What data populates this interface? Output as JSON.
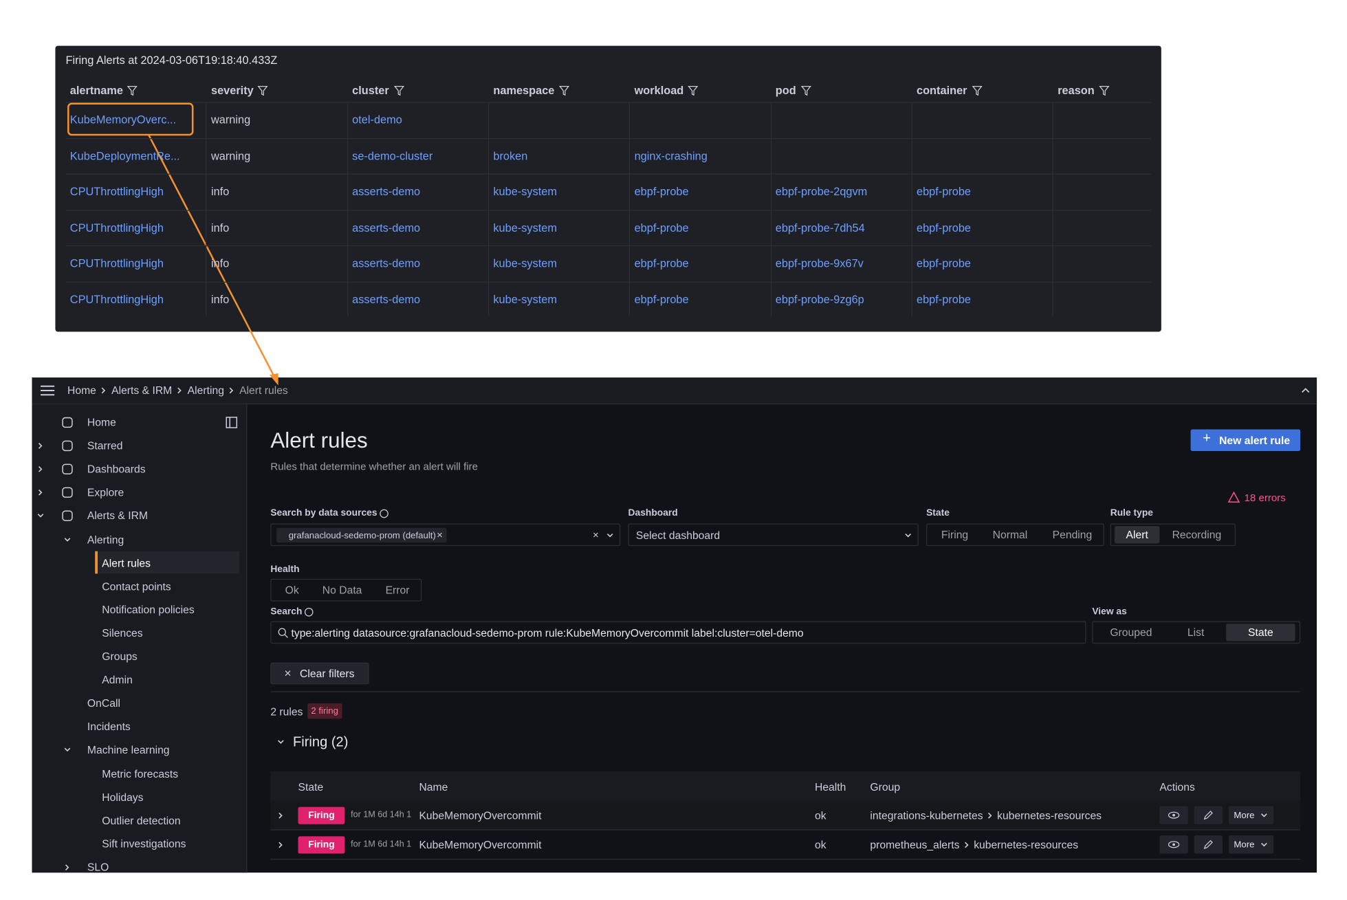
{
  "firing_panel": {
    "title": "Firing Alerts at 2024-03-06T19:18:40.433Z",
    "columns": [
      "alertname",
      "severity",
      "cluster",
      "namespace",
      "workload",
      "pod",
      "container",
      "reason"
    ],
    "rows": [
      [
        "KubeMemoryOverc...",
        "warning",
        "otel-demo",
        null,
        null,
        null,
        null,
        null
      ],
      [
        "KubeDeploymentRe...",
        "warning",
        "se-demo-cluster",
        "broken",
        "nginx-crashing",
        null,
        null,
        null
      ],
      [
        "CPUThrottlingHigh",
        "info",
        "asserts-demo",
        "kube-system",
        "ebpf-probe",
        "ebpf-probe-2qgvm",
        "ebpf-probe",
        null
      ],
      [
        "CPUThrottlingHigh",
        "info",
        "asserts-demo",
        "kube-system",
        "ebpf-probe",
        "ebpf-probe-7dh54",
        "ebpf-probe",
        null
      ],
      [
        "CPUThrottlingHigh",
        "info",
        "asserts-demo",
        "kube-system",
        "ebpf-probe",
        "ebpf-probe-9x67v",
        "ebpf-probe",
        null
      ],
      [
        "CPUThrottlingHigh",
        "info",
        "asserts-demo",
        "kube-system",
        "ebpf-probe",
        "ebpf-probe-9zg6p",
        "ebpf-probe",
        null
      ]
    ]
  },
  "breadcrumb": [
    "Home",
    "Alerts & IRM",
    "Alerting",
    "Alert rules"
  ],
  "nav": {
    "items": [
      {
        "label": "Home"
      },
      {
        "label": "Starred"
      },
      {
        "label": "Dashboards"
      },
      {
        "label": "Explore"
      },
      {
        "label": "Alerts & IRM",
        "children": [
          {
            "label": "Alerting",
            "children": [
              {
                "label": "Alert rules"
              },
              {
                "label": "Contact points"
              },
              {
                "label": "Notification policies"
              },
              {
                "label": "Silences"
              },
              {
                "label": "Groups"
              },
              {
                "label": "Admin"
              }
            ]
          },
          {
            "label": "OnCall"
          },
          {
            "label": "Incidents"
          },
          {
            "label": "Machine learning",
            "children": [
              {
                "label": "Metric forecasts"
              },
              {
                "label": "Holidays"
              },
              {
                "label": "Outlier detection"
              },
              {
                "label": "Sift investigations"
              }
            ]
          },
          {
            "label": "SLO"
          }
        ]
      }
    ]
  },
  "page": {
    "title": "Alert rules",
    "subtitle": "Rules that determine whether an alert will fire",
    "new_rule_button": "New alert rule",
    "errors": "18 errors",
    "filters": {
      "datasource_label": "Search by data sources",
      "datasource_chip": "grafanacloud-sedemo-prom (default)",
      "dashboard_label": "Dashboard",
      "dashboard_placeholder": "Select dashboard",
      "state_label": "State",
      "state_options": [
        "Firing",
        "Normal",
        "Pending"
      ],
      "rule_type_label": "Rule type",
      "rule_type_options": [
        "Alert",
        "Recording"
      ],
      "health_label": "Health",
      "health_options": [
        "Ok",
        "No Data",
        "Error"
      ],
      "search_label": "Search",
      "search_query": "type:alerting datasource:grafanacloud-sedemo-prom rule:KubeMemoryOvercommit label:cluster=otel-demo",
      "view_label": "View as",
      "view_options": [
        "Grouped",
        "List",
        "State"
      ],
      "clear_button": "Clear filters"
    },
    "summary": "2 rules",
    "firing_badge": "2 firing",
    "group_title": "Firing (2)",
    "table": {
      "columns": [
        "State",
        "Name",
        "Health",
        "Group",
        "Actions"
      ],
      "rows": [
        {
          "state": "Firing",
          "duration": "for 1M 6d 14h 1",
          "name": "KubeMemoryOvercommit",
          "health": "ok",
          "group": "integrations-kubernetes",
          "subgroup": "kubernetes-resources",
          "more": "More"
        },
        {
          "state": "Firing",
          "duration": "for 1M 6d 14h 1",
          "name": "KubeMemoryOvercommit",
          "health": "ok",
          "group": "prometheus_alerts",
          "subgroup": "kubernetes-resources",
          "more": "More"
        }
      ]
    }
  }
}
